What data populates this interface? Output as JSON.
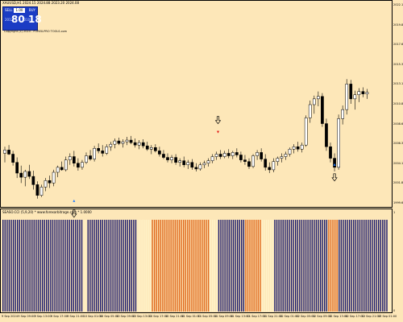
{
  "chart": {
    "symbol_info": "XAUUSD,H1  2024.15 2024.88 2023.20 2024.08",
    "indicator_info": "SEASO.CCI (5,9,20) * www.forexarbitrage.com * 1.0000",
    "copyright": "Copyright (c) 2024 - FOREX-PRO TOOLS.com"
  },
  "trade_panel": {
    "sell_label": "SELL",
    "buy_label": "BUY",
    "lot_value": "1.00",
    "sell_small": "2012",
    "sell_big": "80",
    "buy_small": "2010",
    "buy_big": "18"
  },
  "price_axis": [
    "2022.10",
    "2019.85",
    "2017.60",
    "2015.35",
    "2013.10",
    "2010.85",
    "2008.60",
    "2006.35",
    "2004.10",
    "2001.85",
    "1999.60"
  ],
  "indicator_axis": [
    "1",
    "0"
  ],
  "time_axis": [
    "9 Sep 2024",
    "9 Sep 09:00",
    "9 Sep 13:00",
    "9 Sep 17:00",
    "9 Sep 21:00",
    "10 Sep 01:00",
    "10 Sep 05:00",
    "10 Sep 09:00",
    "10 Sep 13:00",
    "10 Sep 17:00",
    "10 Sep 21:00",
    "11 Sep 01:00",
    "11 Sep 05:00",
    "11 Sep 09:00",
    "11 Sep 13:00",
    "11 Sep 17:00",
    "11 Sep 21:00",
    "12 Sep 01:00",
    "12 Sep 05:00",
    "12 Sep 09:00",
    "12 Sep 13:00",
    "12 Sep 17:00",
    "12 Sep 21:00",
    "13 Sep 01:00"
  ],
  "colors": {
    "background": "#fde7b8",
    "bull_candle": "#ffffff",
    "bear_candle": "#000000",
    "bar_navy": "#1a1a6e",
    "bar_orange": "#e06a20",
    "bar_cream": "#fff2c8",
    "arrow_buy": "#1e7bff",
    "arrow_sell": "#e01010"
  },
  "indicator_bars": "NNNNNNNNNNNNNNNNNNNNNNNNNNNNNNNNNNNNNNNCCNNNNNNNNNNNNNNNNNNNNNNNNCCCCCCCOOOOOOOOOOOOOOOOOOOOOOOOOOOOCCCCNNNNNNNNNNNNNOOOOOOOOCCCCCCNNNNNNNNNNNNNNNNNNNNNNNNNNOOOOONNNNNNNNNNNNNNNNNNNNNNNNCC",
  "candles": [
    {
      "o": 2005.0,
      "h": 2005.8,
      "l": 2003.9,
      "c": 2005.4
    },
    {
      "o": 2005.4,
      "h": 2006.0,
      "l": 2004.8,
      "c": 2004.9
    },
    {
      "o": 2004.9,
      "h": 2005.3,
      "l": 2003.5,
      "c": 2003.9
    },
    {
      "o": 2003.9,
      "h": 2004.5,
      "l": 2002.0,
      "c": 2002.6
    },
    {
      "o": 2002.6,
      "h": 2003.5,
      "l": 2001.4,
      "c": 2002.1
    },
    {
      "o": 2002.1,
      "h": 2003.0,
      "l": 2001.0,
      "c": 2002.8
    },
    {
      "o": 2002.8,
      "h": 2003.6,
      "l": 2001.9,
      "c": 2002.2
    },
    {
      "o": 2002.2,
      "h": 2002.9,
      "l": 2000.6,
      "c": 2001.2
    },
    {
      "o": 2001.2,
      "h": 2001.6,
      "l": 1999.5,
      "c": 1999.9
    },
    {
      "o": 1999.9,
      "h": 2001.2,
      "l": 1999.7,
      "c": 2000.9
    },
    {
      "o": 2000.9,
      "h": 2002.0,
      "l": 2000.4,
      "c": 2001.7
    },
    {
      "o": 2001.7,
      "h": 2002.3,
      "l": 2000.8,
      "c": 2001.4
    },
    {
      "o": 2001.4,
      "h": 2003.0,
      "l": 2001.0,
      "c": 2002.7
    },
    {
      "o": 2002.7,
      "h": 2003.5,
      "l": 2002.1,
      "c": 2003.3
    },
    {
      "o": 2003.3,
      "h": 2004.0,
      "l": 2002.9,
      "c": 2003.0
    },
    {
      "o": 2003.0,
      "h": 2004.6,
      "l": 2002.8,
      "c": 2004.2
    },
    {
      "o": 2004.2,
      "h": 2005.0,
      "l": 2003.6,
      "c": 2004.6
    },
    {
      "o": 2004.6,
      "h": 2005.3,
      "l": 2003.4,
      "c": 2003.8
    },
    {
      "o": 2003.8,
      "h": 2004.4,
      "l": 2002.9,
      "c": 2003.3
    },
    {
      "o": 2003.3,
      "h": 2004.2,
      "l": 2003.0,
      "c": 2003.9
    },
    {
      "o": 2003.9,
      "h": 2005.1,
      "l": 2003.7,
      "c": 2004.7
    },
    {
      "o": 2004.7,
      "h": 2005.4,
      "l": 2004.1,
      "c": 2004.3
    },
    {
      "o": 2004.3,
      "h": 2005.9,
      "l": 2004.0,
      "c": 2005.6
    },
    {
      "o": 2005.6,
      "h": 2006.2,
      "l": 2005.0,
      "c": 2005.3
    },
    {
      "o": 2005.3,
      "h": 2006.0,
      "l": 2004.6,
      "c": 2005.0
    },
    {
      "o": 2005.0,
      "h": 2006.1,
      "l": 2004.8,
      "c": 2005.8
    },
    {
      "o": 2005.8,
      "h": 2006.4,
      "l": 2005.3,
      "c": 2006.1
    },
    {
      "o": 2006.1,
      "h": 2006.8,
      "l": 2005.6,
      "c": 2006.5
    },
    {
      "o": 2006.5,
      "h": 2006.9,
      "l": 2006.0,
      "c": 2006.2
    },
    {
      "o": 2006.2,
      "h": 2006.7,
      "l": 2005.7,
      "c": 2006.4
    },
    {
      "o": 2006.4,
      "h": 2007.0,
      "l": 2006.0,
      "c": 2006.6
    },
    {
      "o": 2006.6,
      "h": 2007.1,
      "l": 2006.1,
      "c": 2006.3
    },
    {
      "o": 2006.3,
      "h": 2006.8,
      "l": 2005.7,
      "c": 2006.0
    },
    {
      "o": 2006.0,
      "h": 2006.6,
      "l": 2005.5,
      "c": 2006.3
    },
    {
      "o": 2006.3,
      "h": 2006.7,
      "l": 2005.6,
      "c": 2005.9
    },
    {
      "o": 2005.9,
      "h": 2006.4,
      "l": 2005.3,
      "c": 2005.5
    },
    {
      "o": 2005.5,
      "h": 2006.0,
      "l": 2004.9,
      "c": 2005.7
    },
    {
      "o": 2005.7,
      "h": 2006.1,
      "l": 2005.1,
      "c": 2005.3
    },
    {
      "o": 2005.3,
      "h": 2005.8,
      "l": 2004.6,
      "c": 2004.9
    },
    {
      "o": 2004.9,
      "h": 2005.4,
      "l": 2004.3,
      "c": 2004.5
    },
    {
      "o": 2004.5,
      "h": 2005.0,
      "l": 2003.9,
      "c": 2004.2
    },
    {
      "o": 2004.2,
      "h": 2004.8,
      "l": 2003.8,
      "c": 2004.5
    },
    {
      "o": 2004.5,
      "h": 2004.9,
      "l": 2003.6,
      "c": 2003.9
    },
    {
      "o": 2003.9,
      "h": 2004.4,
      "l": 2003.4,
      "c": 2004.1
    },
    {
      "o": 2004.1,
      "h": 2004.6,
      "l": 2003.3,
      "c": 2003.6
    },
    {
      "o": 2003.6,
      "h": 2004.2,
      "l": 2003.1,
      "c": 2003.9
    },
    {
      "o": 2003.9,
      "h": 2004.3,
      "l": 2003.0,
      "c": 2003.3
    },
    {
      "o": 2003.3,
      "h": 2003.8,
      "l": 2002.8,
      "c": 2003.1
    },
    {
      "o": 2003.1,
      "h": 2003.9,
      "l": 2002.9,
      "c": 2003.6
    },
    {
      "o": 2003.6,
      "h": 2004.1,
      "l": 2003.2,
      "c": 2003.8
    },
    {
      "o": 2003.8,
      "h": 2004.4,
      "l": 2003.4,
      "c": 2004.1
    },
    {
      "o": 2004.1,
      "h": 2004.9,
      "l": 2003.8,
      "c": 2004.6
    },
    {
      "o": 2004.6,
      "h": 2005.2,
      "l": 2004.2,
      "c": 2004.9
    },
    {
      "o": 2004.9,
      "h": 2005.4,
      "l": 2004.3,
      "c": 2004.6
    },
    {
      "o": 2004.6,
      "h": 2005.3,
      "l": 2004.4,
      "c": 2005.0
    },
    {
      "o": 2005.0,
      "h": 2005.5,
      "l": 2004.4,
      "c": 2004.7
    },
    {
      "o": 2004.7,
      "h": 2005.3,
      "l": 2004.3,
      "c": 2005.1
    },
    {
      "o": 2005.1,
      "h": 2005.6,
      "l": 2004.5,
      "c": 2004.8
    },
    {
      "o": 2004.8,
      "h": 2005.2,
      "l": 2003.9,
      "c": 2004.2
    },
    {
      "o": 2004.2,
      "h": 2004.8,
      "l": 2003.6,
      "c": 2004.0
    },
    {
      "o": 2004.0,
      "h": 2004.4,
      "l": 2003.1,
      "c": 2003.4
    },
    {
      "o": 2003.4,
      "h": 2004.9,
      "l": 2003.2,
      "c": 2004.7
    },
    {
      "o": 2004.7,
      "h": 2005.4,
      "l": 2004.2,
      "c": 2005.1
    },
    {
      "o": 2005.1,
      "h": 2005.6,
      "l": 2004.0,
      "c": 2004.3
    },
    {
      "o": 2004.3,
      "h": 2004.9,
      "l": 2002.9,
      "c": 2003.3
    },
    {
      "o": 2003.3,
      "h": 2003.9,
      "l": 2002.6,
      "c": 2003.0
    },
    {
      "o": 2003.0,
      "h": 2004.4,
      "l": 2002.7,
      "c": 2004.0
    },
    {
      "o": 2004.0,
      "h": 2004.6,
      "l": 2003.5,
      "c": 2004.4
    },
    {
      "o": 2004.4,
      "h": 2005.0,
      "l": 2003.9,
      "c": 2004.6
    },
    {
      "o": 2004.6,
      "h": 2005.2,
      "l": 2004.2,
      "c": 2004.9
    },
    {
      "o": 2004.9,
      "h": 2005.7,
      "l": 2004.6,
      "c": 2005.5
    },
    {
      "o": 2005.5,
      "h": 2006.1,
      "l": 2005.0,
      "c": 2005.8
    },
    {
      "o": 2005.8,
      "h": 2006.4,
      "l": 2005.2,
      "c": 2005.5
    },
    {
      "o": 2005.5,
      "h": 2006.3,
      "l": 2005.1,
      "c": 2006.0
    },
    {
      "o": 2006.0,
      "h": 2009.6,
      "l": 2005.8,
      "c": 2009.3
    },
    {
      "o": 2009.3,
      "h": 2011.4,
      "l": 2008.7,
      "c": 2010.9
    },
    {
      "o": 2010.9,
      "h": 2012.0,
      "l": 2009.8,
      "c": 2011.6
    },
    {
      "o": 2011.6,
      "h": 2012.5,
      "l": 2010.7,
      "c": 2011.9
    },
    {
      "o": 2011.9,
      "h": 2012.3,
      "l": 2008.2,
      "c": 2008.6
    },
    {
      "o": 2008.6,
      "h": 2009.2,
      "l": 2005.3,
      "c": 2005.8
    },
    {
      "o": 2005.8,
      "h": 2006.3,
      "l": 2003.9,
      "c": 2004.4
    },
    {
      "o": 2004.4,
      "h": 2005.0,
      "l": 2002.8,
      "c": 2003.3
    },
    {
      "o": 2003.3,
      "h": 2009.7,
      "l": 2003.0,
      "c": 2009.2
    },
    {
      "o": 2009.2,
      "h": 2010.8,
      "l": 2008.5,
      "c": 2010.3
    },
    {
      "o": 2010.3,
      "h": 2014.0,
      "l": 2009.7,
      "c": 2013.4
    },
    {
      "o": 2013.4,
      "h": 2013.9,
      "l": 2011.0,
      "c": 2011.6
    },
    {
      "o": 2011.6,
      "h": 2012.6,
      "l": 2010.3,
      "c": 2012.1
    },
    {
      "o": 2012.1,
      "h": 2012.9,
      "l": 2011.2,
      "c": 2012.5
    },
    {
      "o": 2012.5,
      "h": 2013.0,
      "l": 2011.8,
      "c": 2012.2
    },
    {
      "o": 2012.2,
      "h": 2012.8,
      "l": 2011.6,
      "c": 2012.4
    }
  ],
  "signals": {
    "buy_arrows": [
      {
        "i": 17,
        "price": 1999.0
      },
      {
        "i": 81,
        "price": 2003.4
      }
    ],
    "sell_arrows": [
      {
        "i": 50,
        "price": 2008.1
      }
    ]
  }
}
